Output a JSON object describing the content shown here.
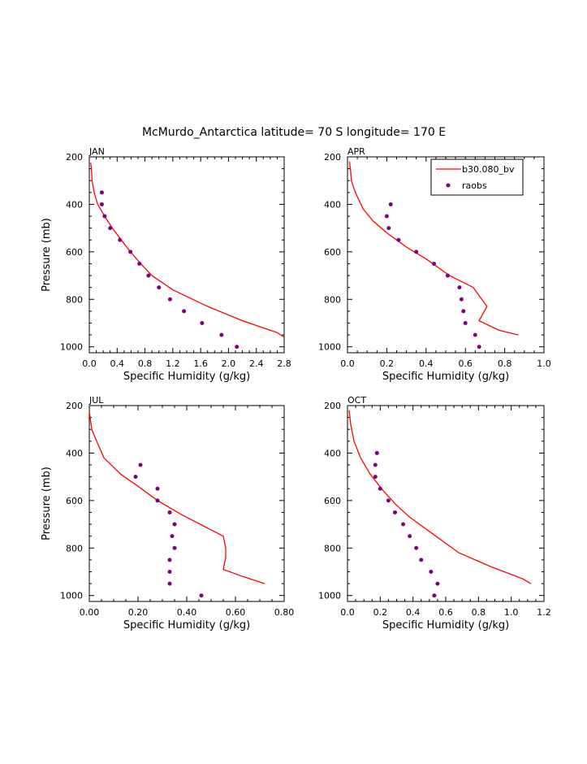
{
  "title": "McMurdo_Antarctica  latitude= 70 S longitude= 170 E",
  "colors": {
    "model": "#ff0000",
    "raobs": "#800080",
    "axis": "#000000"
  },
  "legend": {
    "model_label": "b30.080_bv",
    "raobs_label": "raobs"
  },
  "chart_data": [
    {
      "type": "line",
      "panel": "JAN",
      "xlabel": "Specific Humidity (g/kg)",
      "ylabel": "Pressure (mb)",
      "xlim": [
        0,
        2.8
      ],
      "ylim": [
        200,
        1025
      ],
      "xticks": [
        0.0,
        0.4,
        0.8,
        1.2,
        1.6,
        2.0,
        2.4,
        2.8
      ],
      "xtick_labels": [
        "0.0",
        "0.4",
        "0.8",
        "1.2",
        "1.6",
        "2.0",
        "2.4",
        "2.8"
      ],
      "yticks": [
        200,
        400,
        600,
        800,
        1000
      ],
      "ytick_labels": [
        "200",
        "400",
        "600",
        "800",
        "1000"
      ],
      "model": [
        [
          0.02,
          225
        ],
        [
          0.03,
          250
        ],
        [
          0.04,
          300
        ],
        [
          0.07,
          350
        ],
        [
          0.12,
          400
        ],
        [
          0.22,
          450
        ],
        [
          0.33,
          500
        ],
        [
          0.46,
          550
        ],
        [
          0.59,
          600
        ],
        [
          0.74,
          650
        ],
        [
          0.9,
          700
        ],
        [
          1.2,
          760
        ],
        [
          1.7,
          830
        ],
        [
          2.2,
          890
        ],
        [
          2.7,
          940
        ],
        [
          2.8,
          960
        ]
      ],
      "raobs": [
        [
          0.18,
          350
        ],
        [
          0.18,
          400
        ],
        [
          0.22,
          450
        ],
        [
          0.3,
          500
        ],
        [
          0.44,
          550
        ],
        [
          0.59,
          600
        ],
        [
          0.72,
          650
        ],
        [
          0.85,
          700
        ],
        [
          1.0,
          750
        ],
        [
          1.16,
          800
        ],
        [
          1.36,
          850
        ],
        [
          1.62,
          900
        ],
        [
          1.9,
          950
        ],
        [
          2.12,
          1000
        ]
      ]
    },
    {
      "type": "line",
      "panel": "APR",
      "xlabel": "Specific Humidity (g/kg)",
      "ylabel": "",
      "xlim": [
        0,
        1.0
      ],
      "ylim": [
        200,
        1025
      ],
      "xticks": [
        0.0,
        0.2,
        0.4,
        0.6,
        0.8,
        1.0
      ],
      "xtick_labels": [
        "0.0",
        "0.2",
        "0.4",
        "0.6",
        "0.8",
        "1.0"
      ],
      "yticks": [
        200,
        400,
        600,
        800,
        1000
      ],
      "ytick_labels": [
        "200",
        "400",
        "600",
        "800",
        "1000"
      ],
      "legend": true,
      "model": [
        [
          0.01,
          220
        ],
        [
          0.015,
          250
        ],
        [
          0.02,
          300
        ],
        [
          0.04,
          350
        ],
        [
          0.08,
          420
        ],
        [
          0.13,
          470
        ],
        [
          0.2,
          520
        ],
        [
          0.3,
          580
        ],
        [
          0.4,
          630
        ],
        [
          0.52,
          700
        ],
        [
          0.64,
          750
        ],
        [
          0.71,
          830
        ],
        [
          0.67,
          890
        ],
        [
          0.77,
          930
        ],
        [
          0.87,
          950
        ]
      ],
      "raobs": [
        [
          0.22,
          400
        ],
        [
          0.2,
          450
        ],
        [
          0.21,
          500
        ],
        [
          0.26,
          550
        ],
        [
          0.35,
          600
        ],
        [
          0.44,
          650
        ],
        [
          0.51,
          700
        ],
        [
          0.57,
          750
        ],
        [
          0.58,
          800
        ],
        [
          0.59,
          850
        ],
        [
          0.6,
          900
        ],
        [
          0.65,
          950
        ],
        [
          0.67,
          1000
        ]
      ]
    },
    {
      "type": "line",
      "panel": "JUL",
      "xlabel": "Specific Humidity (g/kg)",
      "ylabel": "Pressure (mb)",
      "xlim": [
        0,
        0.8
      ],
      "ylim": [
        200,
        1025
      ],
      "xticks": [
        0.0,
        0.2,
        0.4,
        0.6,
        0.8
      ],
      "xtick_labels": [
        "0.00",
        "0.20",
        "0.40",
        "0.60",
        "0.80"
      ],
      "yticks": [
        200,
        400,
        600,
        800,
        1000
      ],
      "ytick_labels": [
        "200",
        "400",
        "600",
        "800",
        "1000"
      ],
      "model": [
        [
          0.0,
          225
        ],
        [
          0.01,
          300
        ],
        [
          0.03,
          350
        ],
        [
          0.06,
          420
        ],
        [
          0.13,
          490
        ],
        [
          0.2,
          540
        ],
        [
          0.28,
          600
        ],
        [
          0.38,
          660
        ],
        [
          0.55,
          750
        ],
        [
          0.56,
          800
        ],
        [
          0.56,
          840
        ],
        [
          0.55,
          890
        ],
        [
          0.63,
          920
        ],
        [
          0.72,
          950
        ]
      ],
      "raobs": [
        [
          0.21,
          450
        ],
        [
          0.19,
          500
        ],
        [
          0.28,
          550
        ],
        [
          0.28,
          600
        ],
        [
          0.33,
          650
        ],
        [
          0.35,
          700
        ],
        [
          0.34,
          750
        ],
        [
          0.35,
          800
        ],
        [
          0.33,
          850
        ],
        [
          0.33,
          900
        ],
        [
          0.33,
          950
        ],
        [
          0.46,
          1000
        ]
      ]
    },
    {
      "type": "line",
      "panel": "OCT",
      "xlabel": "Specific Humidity (g/kg)",
      "ylabel": "",
      "xlim": [
        0,
        1.2
      ],
      "ylim": [
        200,
        1025
      ],
      "xticks": [
        0.0,
        0.2,
        0.4,
        0.6,
        0.8,
        1.0,
        1.2
      ],
      "xtick_labels": [
        "0.0",
        "0.2",
        "0.4",
        "0.6",
        "0.8",
        "1.0",
        "1.2"
      ],
      "yticks": [
        200,
        400,
        600,
        800,
        1000
      ],
      "ytick_labels": [
        "200",
        "400",
        "600",
        "800",
        "1000"
      ],
      "model": [
        [
          0.01,
          220
        ],
        [
          0.02,
          280
        ],
        [
          0.04,
          350
        ],
        [
          0.08,
          420
        ],
        [
          0.14,
          490
        ],
        [
          0.22,
          560
        ],
        [
          0.3,
          620
        ],
        [
          0.38,
          670
        ],
        [
          0.5,
          730
        ],
        [
          0.68,
          820
        ],
        [
          0.88,
          880
        ],
        [
          1.07,
          930
        ],
        [
          1.12,
          950
        ]
      ],
      "raobs": [
        [
          0.18,
          400
        ],
        [
          0.17,
          450
        ],
        [
          0.17,
          500
        ],
        [
          0.2,
          550
        ],
        [
          0.25,
          600
        ],
        [
          0.29,
          650
        ],
        [
          0.34,
          700
        ],
        [
          0.38,
          750
        ],
        [
          0.42,
          800
        ],
        [
          0.45,
          850
        ],
        [
          0.51,
          900
        ],
        [
          0.55,
          950
        ],
        [
          0.53,
          1000
        ]
      ]
    }
  ]
}
